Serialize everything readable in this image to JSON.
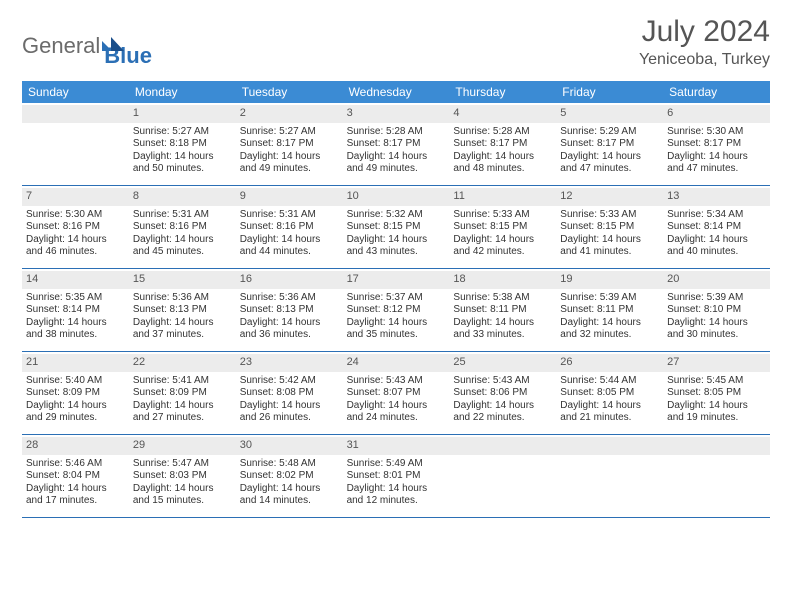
{
  "logo": {
    "part1": "General",
    "part2": "Blue"
  },
  "title": "July 2024",
  "location": "Yeniceoba, Turkey",
  "day_names": [
    "Sunday",
    "Monday",
    "Tuesday",
    "Wednesday",
    "Thursday",
    "Friday",
    "Saturday"
  ],
  "colors": {
    "header_bg": "#3b8bd4",
    "rule": "#2b6fb5",
    "daynum_bg": "#ececec"
  },
  "weeks": [
    [
      null,
      {
        "n": "1",
        "sr": "5:27 AM",
        "ss": "8:18 PM",
        "dl": "14 hours and 50 minutes."
      },
      {
        "n": "2",
        "sr": "5:27 AM",
        "ss": "8:17 PM",
        "dl": "14 hours and 49 minutes."
      },
      {
        "n": "3",
        "sr": "5:28 AM",
        "ss": "8:17 PM",
        "dl": "14 hours and 49 minutes."
      },
      {
        "n": "4",
        "sr": "5:28 AM",
        "ss": "8:17 PM",
        "dl": "14 hours and 48 minutes."
      },
      {
        "n": "5",
        "sr": "5:29 AM",
        "ss": "8:17 PM",
        "dl": "14 hours and 47 minutes."
      },
      {
        "n": "6",
        "sr": "5:30 AM",
        "ss": "8:17 PM",
        "dl": "14 hours and 47 minutes."
      }
    ],
    [
      {
        "n": "7",
        "sr": "5:30 AM",
        "ss": "8:16 PM",
        "dl": "14 hours and 46 minutes."
      },
      {
        "n": "8",
        "sr": "5:31 AM",
        "ss": "8:16 PM",
        "dl": "14 hours and 45 minutes."
      },
      {
        "n": "9",
        "sr": "5:31 AM",
        "ss": "8:16 PM",
        "dl": "14 hours and 44 minutes."
      },
      {
        "n": "10",
        "sr": "5:32 AM",
        "ss": "8:15 PM",
        "dl": "14 hours and 43 minutes."
      },
      {
        "n": "11",
        "sr": "5:33 AM",
        "ss": "8:15 PM",
        "dl": "14 hours and 42 minutes."
      },
      {
        "n": "12",
        "sr": "5:33 AM",
        "ss": "8:15 PM",
        "dl": "14 hours and 41 minutes."
      },
      {
        "n": "13",
        "sr": "5:34 AM",
        "ss": "8:14 PM",
        "dl": "14 hours and 40 minutes."
      }
    ],
    [
      {
        "n": "14",
        "sr": "5:35 AM",
        "ss": "8:14 PM",
        "dl": "14 hours and 38 minutes."
      },
      {
        "n": "15",
        "sr": "5:36 AM",
        "ss": "8:13 PM",
        "dl": "14 hours and 37 minutes."
      },
      {
        "n": "16",
        "sr": "5:36 AM",
        "ss": "8:13 PM",
        "dl": "14 hours and 36 minutes."
      },
      {
        "n": "17",
        "sr": "5:37 AM",
        "ss": "8:12 PM",
        "dl": "14 hours and 35 minutes."
      },
      {
        "n": "18",
        "sr": "5:38 AM",
        "ss": "8:11 PM",
        "dl": "14 hours and 33 minutes."
      },
      {
        "n": "19",
        "sr": "5:39 AM",
        "ss": "8:11 PM",
        "dl": "14 hours and 32 minutes."
      },
      {
        "n": "20",
        "sr": "5:39 AM",
        "ss": "8:10 PM",
        "dl": "14 hours and 30 minutes."
      }
    ],
    [
      {
        "n": "21",
        "sr": "5:40 AM",
        "ss": "8:09 PM",
        "dl": "14 hours and 29 minutes."
      },
      {
        "n": "22",
        "sr": "5:41 AM",
        "ss": "8:09 PM",
        "dl": "14 hours and 27 minutes."
      },
      {
        "n": "23",
        "sr": "5:42 AM",
        "ss": "8:08 PM",
        "dl": "14 hours and 26 minutes."
      },
      {
        "n": "24",
        "sr": "5:43 AM",
        "ss": "8:07 PM",
        "dl": "14 hours and 24 minutes."
      },
      {
        "n": "25",
        "sr": "5:43 AM",
        "ss": "8:06 PM",
        "dl": "14 hours and 22 minutes."
      },
      {
        "n": "26",
        "sr": "5:44 AM",
        "ss": "8:05 PM",
        "dl": "14 hours and 21 minutes."
      },
      {
        "n": "27",
        "sr": "5:45 AM",
        "ss": "8:05 PM",
        "dl": "14 hours and 19 minutes."
      }
    ],
    [
      {
        "n": "28",
        "sr": "5:46 AM",
        "ss": "8:04 PM",
        "dl": "14 hours and 17 minutes."
      },
      {
        "n": "29",
        "sr": "5:47 AM",
        "ss": "8:03 PM",
        "dl": "14 hours and 15 minutes."
      },
      {
        "n": "30",
        "sr": "5:48 AM",
        "ss": "8:02 PM",
        "dl": "14 hours and 14 minutes."
      },
      {
        "n": "31",
        "sr": "5:49 AM",
        "ss": "8:01 PM",
        "dl": "14 hours and 12 minutes."
      },
      null,
      null,
      null
    ]
  ],
  "labels": {
    "sunrise": "Sunrise:",
    "sunset": "Sunset:",
    "daylight": "Daylight:"
  }
}
